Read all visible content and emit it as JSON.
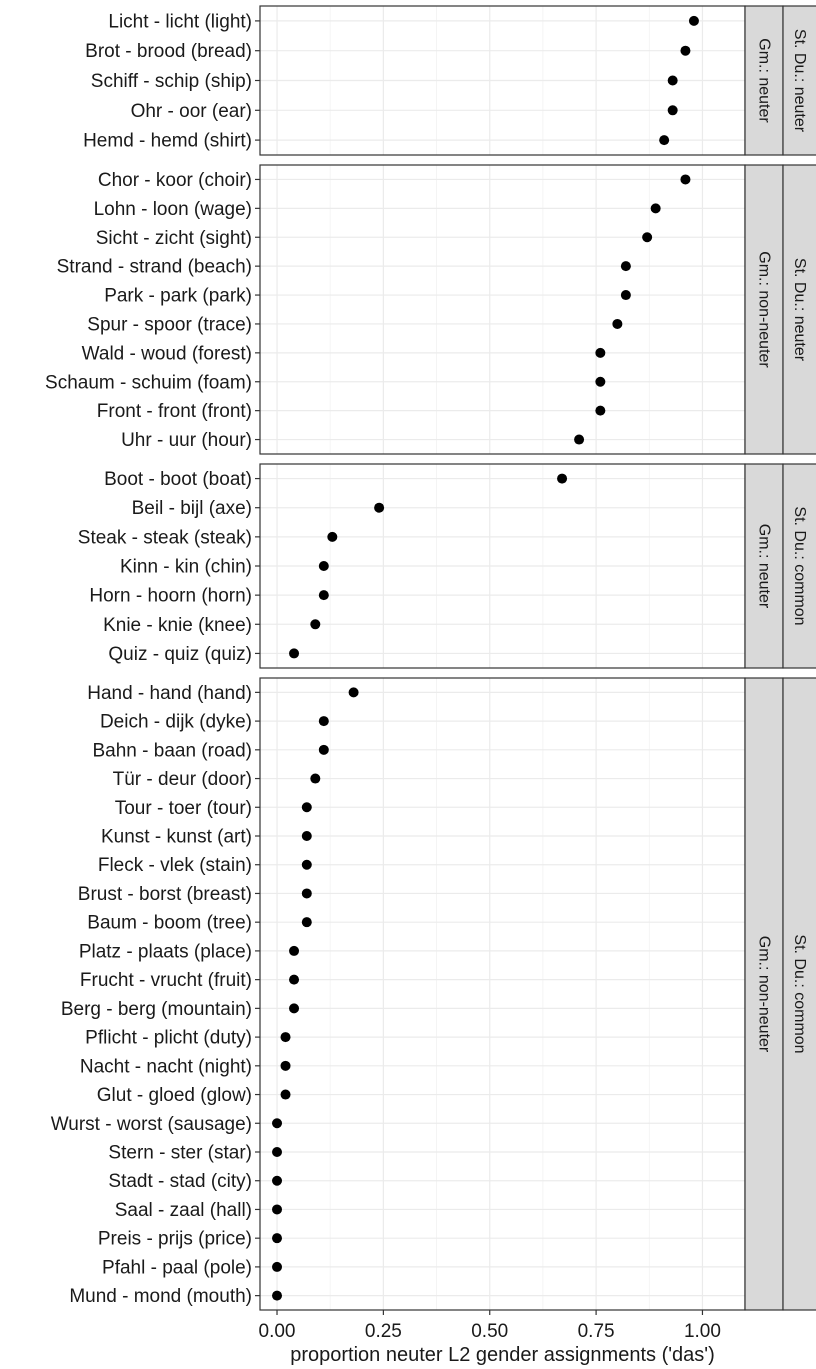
{
  "chart_data": {
    "type": "scatter",
    "xlabel": "proportion neuter L2 gender assignments ('das')",
    "ylabel": "",
    "xlim": [
      -0.04,
      1.1
    ],
    "xticks": [
      "0.00",
      "0.25",
      "0.50",
      "0.75",
      "1.00"
    ],
    "xtick_values": [
      0,
      0.25,
      0.5,
      0.75,
      1.0
    ],
    "grid": true,
    "panels": [
      {
        "gm": "Gm.: neuter",
        "du": "St. Du.: neuter",
        "categories": [
          "Licht - licht (light)",
          "Brot - brood (bread)",
          "Schiff - schip (ship)",
          "Ohr - oor (ear)",
          "Hemd - hemd (shirt)"
        ],
        "values": [
          0.98,
          0.96,
          0.93,
          0.93,
          0.91
        ]
      },
      {
        "gm": "Gm.: non-neuter",
        "du": "St. Du.: neuter",
        "categories": [
          "Chor - koor (choir)",
          "Lohn - loon (wage)",
          "Sicht - zicht (sight)",
          "Strand - strand (beach)",
          "Park - park (park)",
          "Spur - spoor (trace)",
          "Wald - woud (forest)",
          "Schaum - schuim (foam)",
          "Front - front (front)",
          "Uhr - uur (hour)"
        ],
        "values": [
          0.96,
          0.89,
          0.87,
          0.82,
          0.82,
          0.8,
          0.76,
          0.76,
          0.76,
          0.71
        ]
      },
      {
        "gm": "Gm.: neuter",
        "du": "St. Du.: common",
        "categories": [
          "Boot - boot (boat)",
          "Beil - bijl (axe)",
          "Steak - steak (steak)",
          "Kinn - kin (chin)",
          "Horn - hoorn (horn)",
          "Knie - knie (knee)",
          "Quiz - quiz (quiz)"
        ],
        "values": [
          0.67,
          0.24,
          0.13,
          0.11,
          0.11,
          0.09,
          0.04
        ]
      },
      {
        "gm": "Gm.: non-neuter",
        "du": "St. Du.: common",
        "categories": [
          "Hand - hand (hand)",
          "Deich - dijk (dyke)",
          "Bahn - baan (road)",
          "Tür - deur (door)",
          "Tour - toer (tour)",
          "Kunst - kunst (art)",
          "Fleck - vlek (stain)",
          "Brust - borst (breast)",
          "Baum - boom (tree)",
          "Platz - plaats (place)",
          "Frucht - vrucht (fruit)",
          "Berg - berg (mountain)",
          "Pflicht - plicht (duty)",
          "Nacht - nacht (night)",
          "Glut - gloed (glow)",
          "Wurst - worst (sausage)",
          "Stern - ster (star)",
          "Stadt - stad (city)",
          "Saal - zaal (hall)",
          "Preis - prijs (price)",
          "Pfahl - paal (pole)",
          "Mund - mond (mouth)"
        ],
        "values": [
          0.18,
          0.11,
          0.11,
          0.09,
          0.07,
          0.07,
          0.07,
          0.07,
          0.07,
          0.04,
          0.04,
          0.04,
          0.02,
          0.02,
          0.02,
          0.0,
          0.0,
          0.0,
          0.0,
          0.0,
          0.0,
          0.0
        ]
      }
    ]
  }
}
